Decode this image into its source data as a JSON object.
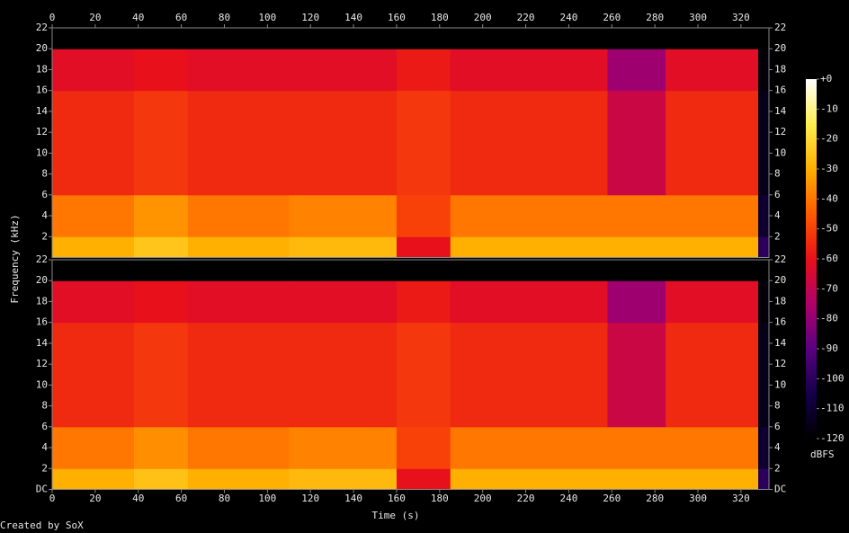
{
  "chart_data": {
    "type": "spectrogram",
    "xlabel": "Time (s)",
    "ylabel": "Frequency (kHz)",
    "zlabel": "dBFS",
    "credit": "Created by SoX",
    "xlim": [
      0,
      333
    ],
    "xticks": [
      0,
      20,
      40,
      60,
      80,
      100,
      120,
      140,
      160,
      180,
      200,
      220,
      240,
      260,
      280,
      300,
      320
    ],
    "ylim": [
      0,
      22
    ],
    "zlim": [
      -120,
      0
    ],
    "zticks": [
      {
        "value": 0,
        "label": "+0"
      },
      -10,
      -20,
      -30,
      -40,
      -50,
      -60,
      -70,
      -80,
      -90,
      -100,
      -110,
      -120
    ],
    "colormap": [
      "#000000",
      "#14004a",
      "#5a0082",
      "#b0006a",
      "#e8101a",
      "#ff5a00",
      "#ffb000",
      "#ffee50",
      "#ffffff"
    ],
    "time_edges": [
      0,
      38,
      63,
      110,
      160,
      185,
      258,
      285,
      328,
      333
    ],
    "freq_edges": [
      0,
      2,
      6,
      16,
      20,
      22
    ],
    "panels": [
      {
        "yticks": [
          2,
          4,
          6,
          8,
          10,
          12,
          14,
          16,
          18,
          20,
          22
        ],
        "values": [
          [
            -30,
            -40,
            -55,
            -62,
            -120
          ],
          [
            -25,
            -35,
            -52,
            -60,
            -120
          ],
          [
            -30,
            -40,
            -55,
            -62,
            -120
          ],
          [
            -28,
            -38,
            -55,
            -62,
            -120
          ],
          [
            -60,
            -50,
            -52,
            -58,
            -120
          ],
          [
            -30,
            -40,
            -55,
            -62,
            -120
          ],
          [
            -30,
            -40,
            -68,
            -78,
            -120
          ],
          [
            -30,
            -40,
            -55,
            -62,
            -120
          ],
          [
            -100,
            -110,
            -115,
            -118,
            -120
          ]
        ]
      },
      {
        "yticks": [
          {
            "value": 0,
            "label": "DC"
          },
          2,
          4,
          6,
          8,
          10,
          12,
          14,
          16,
          18,
          20,
          22
        ],
        "values": [
          [
            -30,
            -40,
            -55,
            -62,
            -120
          ],
          [
            -26,
            -36,
            -52,
            -60,
            -120
          ],
          [
            -30,
            -40,
            -55,
            -62,
            -120
          ],
          [
            -28,
            -38,
            -55,
            -62,
            -120
          ],
          [
            -60,
            -50,
            -52,
            -58,
            -120
          ],
          [
            -30,
            -40,
            -55,
            -62,
            -120
          ],
          [
            -30,
            -40,
            -68,
            -78,
            -120
          ],
          [
            -30,
            -40,
            -55,
            -62,
            -120
          ],
          [
            -100,
            -110,
            -115,
            -118,
            -120
          ]
        ]
      }
    ]
  }
}
